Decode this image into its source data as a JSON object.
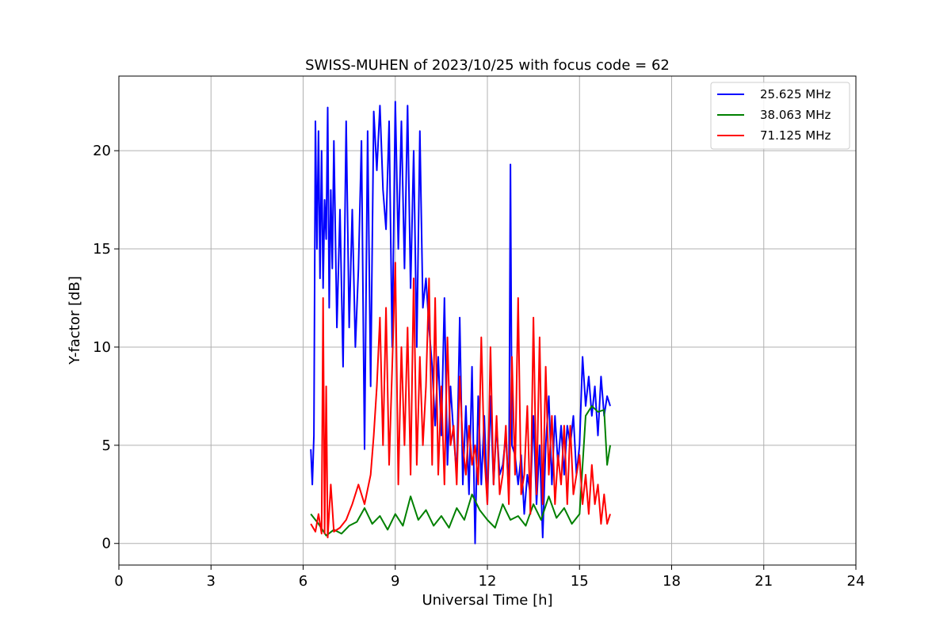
{
  "chart_data": {
    "type": "line",
    "title": "SWISS-MUHEN of 2023/10/25 with focus code = 62",
    "xlabel": "Universal Time [h]",
    "ylabel": "Y-factor [dB]",
    "xlim": [
      0,
      24
    ],
    "ylim": [
      -1.1,
      23.8
    ],
    "xticks": [
      0,
      3,
      6,
      9,
      12,
      15,
      18,
      21,
      24
    ],
    "yticks": [
      0,
      5,
      10,
      15,
      20
    ],
    "grid": true,
    "legend_position": "top-right",
    "series": [
      {
        "name": "25.625 MHz",
        "color": "#0000ff",
        "x": [
          6.25,
          6.3,
          6.35,
          6.4,
          6.45,
          6.5,
          6.55,
          6.6,
          6.65,
          6.7,
          6.75,
          6.8,
          6.85,
          6.9,
          6.95,
          7.0,
          7.1,
          7.2,
          7.3,
          7.4,
          7.5,
          7.6,
          7.7,
          7.8,
          7.9,
          8.0,
          8.1,
          8.2,
          8.3,
          8.4,
          8.5,
          8.6,
          8.7,
          8.8,
          8.9,
          9.0,
          9.1,
          9.2,
          9.3,
          9.4,
          9.5,
          9.6,
          9.7,
          9.8,
          9.9,
          10.0,
          10.1,
          10.2,
          10.3,
          10.4,
          10.5,
          10.6,
          10.7,
          10.8,
          10.9,
          11.0,
          11.1,
          11.2,
          11.3,
          11.4,
          11.5,
          11.6,
          11.7,
          11.8,
          11.9,
          12.0,
          12.1,
          12.2,
          12.3,
          12.4,
          12.5,
          12.6,
          12.7,
          12.75,
          12.8,
          12.9,
          13.0,
          13.1,
          13.2,
          13.3,
          13.4,
          13.5,
          13.6,
          13.7,
          13.8,
          13.9,
          14.0,
          14.1,
          14.2,
          14.3,
          14.4,
          14.5,
          14.6,
          14.7,
          14.8,
          14.9,
          15.0,
          15.1,
          15.2,
          15.3,
          15.4,
          15.5,
          15.6,
          15.7,
          15.8,
          15.9,
          16.0
        ],
        "y": [
          4.8,
          3.0,
          5.5,
          21.5,
          15.0,
          21.0,
          13.5,
          20.0,
          13.0,
          17.5,
          15.5,
          22.2,
          12.0,
          18.0,
          14.0,
          20.5,
          11.0,
          17.0,
          9.0,
          21.5,
          11.0,
          17.0,
          10.0,
          14.0,
          20.5,
          4.8,
          21.0,
          8.0,
          22.0,
          19.0,
          22.3,
          18.0,
          16.0,
          21.5,
          10.0,
          22.5,
          15.0,
          21.5,
          14.0,
          22.3,
          13.0,
          20.0,
          10.0,
          21.0,
          12.0,
          13.5,
          11.0,
          9.0,
          6.0,
          9.5,
          5.5,
          12.5,
          4.0,
          8.0,
          5.5,
          3.5,
          11.5,
          3.0,
          7.0,
          2.5,
          9.0,
          0.0,
          7.5,
          3.0,
          6.5,
          2.0,
          7.5,
          3.0,
          6.0,
          3.5,
          4.0,
          5.5,
          2.5,
          19.3,
          5.0,
          4.5,
          3.0,
          4.5,
          1.5,
          3.5,
          2.5,
          6.5,
          2.0,
          5.0,
          0.3,
          5.0,
          7.5,
          3.0,
          6.5,
          4.0,
          6.0,
          3.5,
          6.0,
          5.0,
          6.5,
          3.5,
          5.0,
          9.5,
          7.0,
          8.5,
          6.5,
          8.0,
          5.5,
          8.5,
          6.5,
          7.5,
          7.0
        ]
      },
      {
        "name": "38.063 MHz",
        "color": "#008000",
        "x": [
          6.25,
          6.5,
          6.75,
          7.0,
          7.25,
          7.5,
          7.75,
          8.0,
          8.25,
          8.5,
          8.75,
          9.0,
          9.25,
          9.5,
          9.75,
          10.0,
          10.25,
          10.5,
          10.75,
          11.0,
          11.25,
          11.5,
          11.75,
          12.0,
          12.25,
          12.5,
          12.75,
          13.0,
          13.25,
          13.5,
          13.75,
          14.0,
          14.25,
          14.5,
          14.75,
          15.0,
          15.2,
          15.4,
          15.6,
          15.8,
          15.9,
          16.0
        ],
        "y": [
          1.5,
          1.0,
          0.4,
          0.7,
          0.5,
          0.9,
          1.1,
          1.8,
          1.0,
          1.4,
          0.7,
          1.5,
          0.9,
          2.4,
          1.2,
          1.7,
          0.9,
          1.4,
          0.8,
          1.8,
          1.2,
          2.5,
          1.7,
          1.2,
          0.8,
          2.0,
          1.2,
          1.4,
          0.9,
          2.0,
          1.2,
          2.4,
          1.3,
          1.8,
          1.0,
          1.5,
          6.5,
          7.0,
          6.7,
          6.8,
          4.0,
          5.0
        ]
      },
      {
        "name": "71.125 MHz",
        "color": "#ff0000",
        "x": [
          6.25,
          6.4,
          6.5,
          6.6,
          6.65,
          6.7,
          6.75,
          6.8,
          6.9,
          7.0,
          7.2,
          7.4,
          7.6,
          7.8,
          8.0,
          8.2,
          8.3,
          8.4,
          8.5,
          8.6,
          8.7,
          8.8,
          8.9,
          9.0,
          9.1,
          9.2,
          9.3,
          9.4,
          9.5,
          9.6,
          9.7,
          9.8,
          9.9,
          10.0,
          10.1,
          10.2,
          10.3,
          10.4,
          10.5,
          10.6,
          10.7,
          10.8,
          10.9,
          11.0,
          11.1,
          11.2,
          11.3,
          11.4,
          11.5,
          11.6,
          11.7,
          11.8,
          11.9,
          12.0,
          12.1,
          12.2,
          12.3,
          12.4,
          12.5,
          12.6,
          12.7,
          12.8,
          12.9,
          13.0,
          13.1,
          13.2,
          13.3,
          13.4,
          13.5,
          13.6,
          13.7,
          13.8,
          13.9,
          14.0,
          14.1,
          14.2,
          14.3,
          14.4,
          14.5,
          14.6,
          14.7,
          14.8,
          14.9,
          15.0,
          15.1,
          15.2,
          15.3,
          15.4,
          15.5,
          15.6,
          15.7,
          15.8,
          15.9,
          16.0
        ],
        "y": [
          1.0,
          0.6,
          1.5,
          0.5,
          12.5,
          0.5,
          8.0,
          0.3,
          3.0,
          0.6,
          0.8,
          1.2,
          2.0,
          3.0,
          2.0,
          3.5,
          5.5,
          8.0,
          11.5,
          5.0,
          12.0,
          4.0,
          9.0,
          14.3,
          3.0,
          10.0,
          5.0,
          11.0,
          3.5,
          13.5,
          4.0,
          9.5,
          5.0,
          8.0,
          13.5,
          4.0,
          12.5,
          3.5,
          8.0,
          3.0,
          10.5,
          5.0,
          6.0,
          3.0,
          8.5,
          5.0,
          3.5,
          6.0,
          4.0,
          5.0,
          3.0,
          10.5,
          4.5,
          2.0,
          10.0,
          3.0,
          6.5,
          2.5,
          3.5,
          6.0,
          2.0,
          9.5,
          3.5,
          12.5,
          2.5,
          3.5,
          7.0,
          1.5,
          11.5,
          2.5,
          10.5,
          2.0,
          9.0,
          3.5,
          6.5,
          2.0,
          4.5,
          3.0,
          6.0,
          2.0,
          6.0,
          2.5,
          3.5,
          4.5,
          2.0,
          3.5,
          1.5,
          4.0,
          2.0,
          3.0,
          1.0,
          2.5,
          1.0,
          1.5
        ]
      }
    ]
  }
}
